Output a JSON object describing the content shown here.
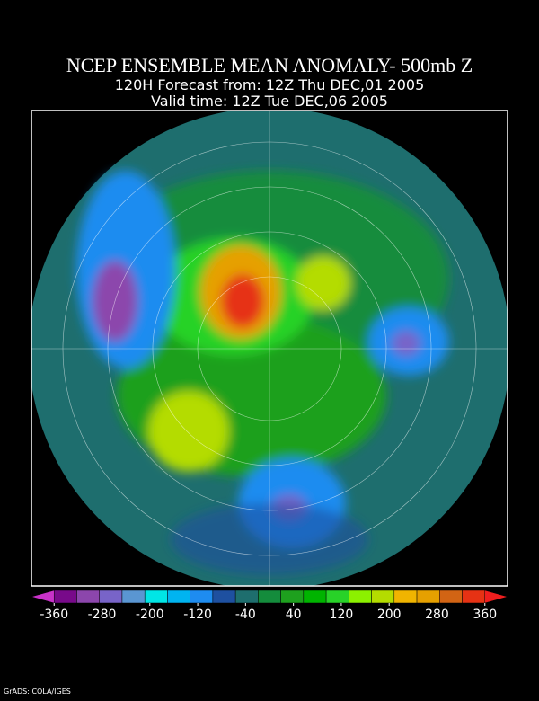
{
  "header": {
    "title": "NCEP ENSEMBLE MEAN ANOMALY- 500mb Z",
    "subtitle": "120H Forecast from: 12Z Thu DEC,01 2005",
    "valid_time": "Valid time: 12Z Tue DEC,06 2005"
  },
  "colorbar": {
    "colors": [
      "#c832c8",
      "#780a8a",
      "#8c46ac",
      "#7864c8",
      "#5a96d2",
      "#00e6e6",
      "#00b4f0",
      "#1e8cf0",
      "#1e50a0",
      "#1e6e6e",
      "#148c3c",
      "#1ea01e",
      "#00b400",
      "#28d228",
      "#8cf000",
      "#b4dc00",
      "#f0b400",
      "#e6a000",
      "#d26414",
      "#e63214",
      "#f01e1e"
    ],
    "ticks": [
      -360,
      -280,
      -200,
      -120,
      -40,
      40,
      120,
      200,
      280,
      360
    ]
  },
  "footer": "GrADS: COLA/IGES"
}
